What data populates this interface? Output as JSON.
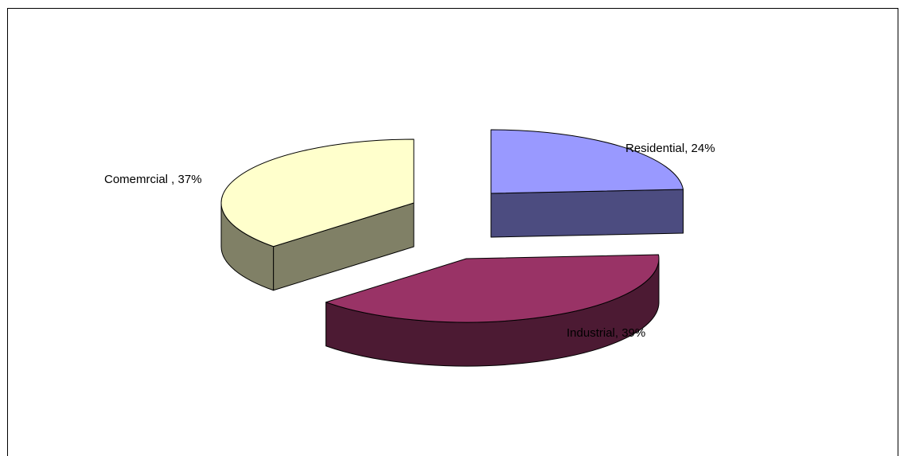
{
  "chart_data": {
    "type": "pie",
    "style": "3d-exploded",
    "title": "",
    "legend": "none",
    "slices": [
      {
        "name": "Residential",
        "value": 24,
        "label": "Residential, 24%",
        "top_color": "#9999ff",
        "side_color": "#4c4c80"
      },
      {
        "name": "Industrial",
        "value": 39,
        "label": "Industrial, 39%",
        "top_color": "#993366",
        "side_color": "#4c1a33"
      },
      {
        "name": "Comemrcial",
        "value": 37,
        "label": "Comemrcial , 37%",
        "top_color": "#ffffcc",
        "side_color": "#808066"
      }
    ]
  }
}
